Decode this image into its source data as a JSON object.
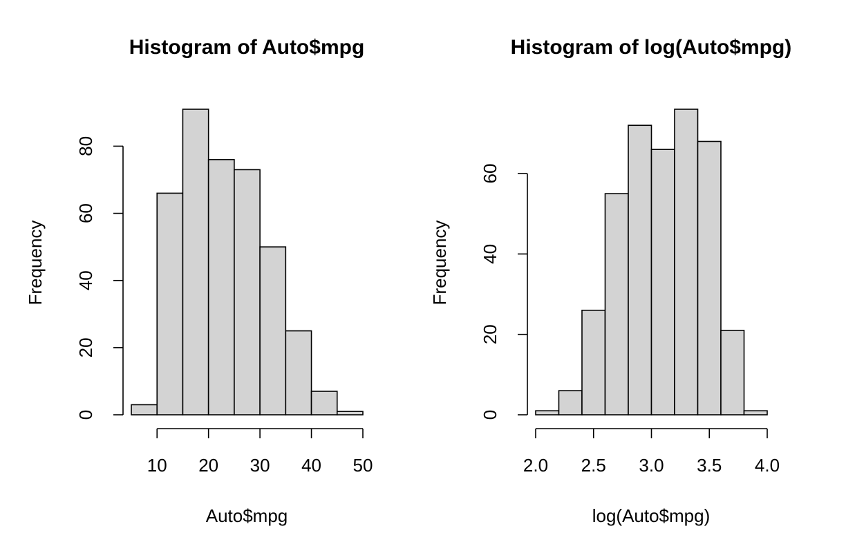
{
  "chart_data": [
    {
      "type": "bar",
      "title": "Histogram of Auto$mpg",
      "xlabel": "Auto$mpg",
      "ylabel": "Frequency",
      "bin_edges": [
        5,
        10,
        15,
        20,
        25,
        30,
        35,
        40,
        45,
        50
      ],
      "values": [
        3,
        66,
        91,
        76,
        73,
        50,
        25,
        7,
        1
      ],
      "xlim": [
        5,
        50
      ],
      "ylim": [
        0,
        91
      ],
      "x_ticks": [
        10,
        20,
        30,
        40,
        50
      ],
      "x_tick_labels": [
        "10",
        "20",
        "30",
        "40",
        "50"
      ],
      "y_ticks": [
        0,
        20,
        40,
        60,
        80
      ],
      "y_tick_labels": [
        "0",
        "20",
        "40",
        "60",
        "80"
      ],
      "bar_color": "#d3d3d3",
      "grid": false
    },
    {
      "type": "bar",
      "title": "Histogram of log(Auto$mpg)",
      "xlabel": "log(Auto$mpg)",
      "ylabel": "Frequency",
      "bin_edges": [
        2.0,
        2.2,
        2.4,
        2.6,
        2.8,
        3.0,
        3.2,
        3.4,
        3.6,
        3.8,
        4.0
      ],
      "values": [
        1,
        6,
        26,
        55,
        72,
        66,
        76,
        68,
        21,
        1
      ],
      "xlim": [
        2.0,
        4.0
      ],
      "ylim": [
        0,
        76
      ],
      "x_ticks": [
        2.0,
        2.5,
        3.0,
        3.5,
        4.0
      ],
      "x_tick_labels": [
        "2.0",
        "2.5",
        "3.0",
        "3.5",
        "4.0"
      ],
      "y_ticks": [
        0,
        20,
        40,
        60
      ],
      "y_tick_labels": [
        "0",
        "20",
        "40",
        "60"
      ],
      "bar_color": "#d3d3d3",
      "grid": false
    }
  ]
}
